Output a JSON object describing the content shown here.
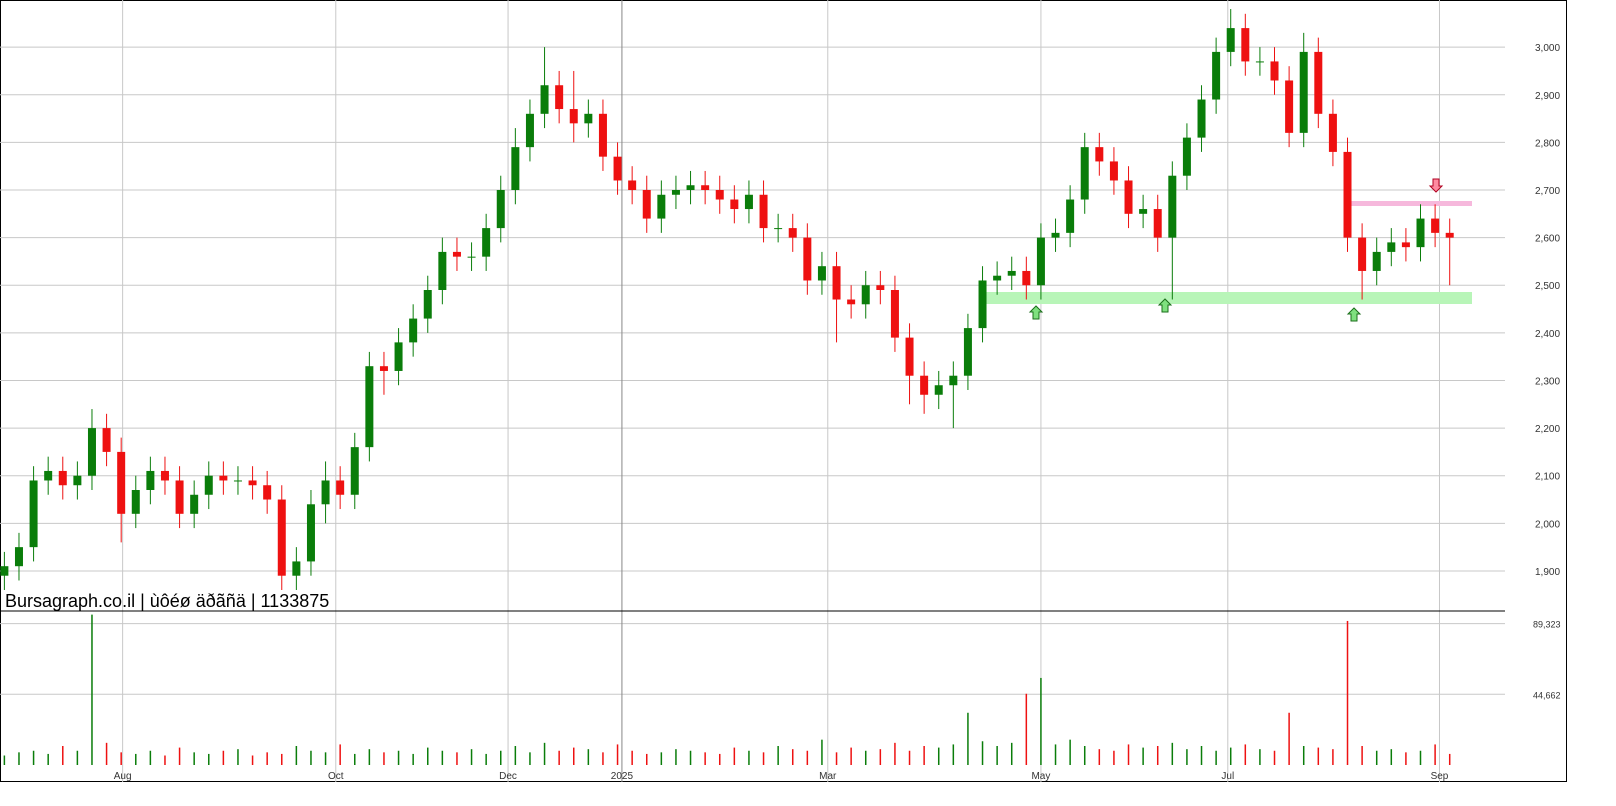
{
  "chart_data": {
    "type": "candlestick",
    "title": "Bursagraph.co.il | ùôéø äðãñä | 1133875",
    "x": [
      0,
      1,
      2,
      3,
      4,
      5,
      6,
      7,
      8,
      9,
      10,
      11,
      12,
      13,
      14,
      15,
      16,
      17,
      18,
      19,
      20,
      21,
      22,
      23,
      24,
      25,
      26,
      27,
      28,
      29,
      30,
      31,
      32,
      33,
      34,
      35,
      36,
      37,
      38,
      39,
      40,
      41,
      42,
      43,
      44,
      45,
      46,
      47,
      48,
      49,
      50,
      51,
      52,
      53,
      54,
      55,
      56,
      57,
      58,
      59,
      60,
      61,
      62,
      63,
      64,
      65,
      66,
      67,
      68,
      69,
      70,
      71,
      72,
      73,
      74,
      75,
      76,
      77,
      78,
      79,
      80,
      81,
      82,
      83,
      84,
      85,
      86,
      87,
      88,
      89,
      90,
      91,
      92,
      93,
      94,
      95,
      96,
      97,
      98,
      99
    ],
    "open": [
      1890,
      1910,
      1950,
      2090,
      2110,
      2080,
      2100,
      2200,
      2150,
      2020,
      2070,
      2110,
      2090,
      2020,
      2060,
      2100,
      2090,
      2090,
      2080,
      2050,
      1890,
      1920,
      2040,
      2090,
      2060,
      2160,
      2330,
      2320,
      2380,
      2430,
      2490,
      2570,
      2560,
      2560,
      2620,
      2700,
      2790,
      2860,
      2920,
      2870,
      2840,
      2860,
      2770,
      2720,
      2700,
      2640,
      2690,
      2700,
      2710,
      2700,
      2680,
      2660,
      2690,
      2620,
      2620,
      2600,
      2510,
      2540,
      2470,
      2460,
      2500,
      2490,
      2390,
      2310,
      2270,
      2290,
      2310,
      2410,
      2510,
      2520,
      2530,
      2500,
      2600,
      2610,
      2680,
      2790,
      2760,
      2720,
      2650,
      2660,
      2600,
      2730,
      2810,
      2890,
      2990,
      3040,
      2970,
      2970,
      2930,
      2820,
      2990,
      2860,
      2780,
      2600,
      2530,
      2570,
      2590,
      2580,
      2640,
      2610
    ],
    "high": [
      1940,
      1980,
      2120,
      2140,
      2140,
      2130,
      2240,
      2230,
      2180,
      2100,
      2140,
      2140,
      2120,
      2090,
      2130,
      2130,
      2120,
      2120,
      2110,
      2080,
      1950,
      2070,
      2130,
      2120,
      2190,
      2360,
      2360,
      2410,
      2460,
      2520,
      2600,
      2600,
      2590,
      2650,
      2730,
      2830,
      2890,
      3000,
      2950,
      2950,
      2890,
      2890,
      2800,
      2750,
      2730,
      2720,
      2730,
      2740,
      2740,
      2730,
      2710,
      2720,
      2720,
      2650,
      2650,
      2630,
      2570,
      2570,
      2500,
      2530,
      2530,
      2520,
      2420,
      2340,
      2320,
      2340,
      2440,
      2540,
      2550,
      2560,
      2560,
      2630,
      2640,
      2710,
      2820,
      2820,
      2790,
      2750,
      2690,
      2690,
      2760,
      2840,
      2920,
      3020,
      3080,
      3070,
      3000,
      3000,
      2960,
      3030,
      3020,
      2890,
      2810,
      2630,
      2600,
      2620,
      2620,
      2670,
      2670,
      2640
    ],
    "low": [
      1860,
      1880,
      1920,
      2060,
      2050,
      2050,
      2070,
      2120,
      1960,
      1990,
      2040,
      2060,
      1990,
      1990,
      2030,
      2060,
      2060,
      2050,
      2020,
      1860,
      1860,
      1890,
      2000,
      2030,
      2030,
      2130,
      2270,
      2290,
      2350,
      2400,
      2460,
      2530,
      2530,
      2530,
      2590,
      2670,
      2760,
      2830,
      2840,
      2800,
      2810,
      2740,
      2690,
      2670,
      2610,
      2610,
      2660,
      2670,
      2670,
      2650,
      2630,
      2630,
      2590,
      2590,
      2570,
      2480,
      2480,
      2380,
      2430,
      2430,
      2460,
      2360,
      2250,
      2230,
      2240,
      2200,
      2280,
      2380,
      2480,
      2490,
      2470,
      2470,
      2570,
      2580,
      2650,
      2730,
      2690,
      2620,
      2620,
      2570,
      2470,
      2700,
      2780,
      2860,
      2960,
      2940,
      2940,
      2900,
      2790,
      2790,
      2830,
      2750,
      2570,
      2470,
      2500,
      2540,
      2550,
      2550,
      2580,
      2500
    ],
    "close": [
      1910,
      1950,
      2090,
      2110,
      2080,
      2100,
      2200,
      2150,
      2020,
      2070,
      2110,
      2090,
      2020,
      2060,
      2100,
      2090,
      2090,
      2080,
      2050,
      1890,
      1920,
      2040,
      2090,
      2060,
      2160,
      2330,
      2320,
      2380,
      2430,
      2490,
      2570,
      2560,
      2560,
      2620,
      2700,
      2790,
      2860,
      2920,
      2870,
      2840,
      2860,
      2770,
      2720,
      2700,
      2640,
      2690,
      2700,
      2710,
      2700,
      2680,
      2660,
      2690,
      2620,
      2620,
      2600,
      2510,
      2540,
      2470,
      2460,
      2500,
      2490,
      2390,
      2310,
      2270,
      2290,
      2310,
      2410,
      2510,
      2520,
      2530,
      2500,
      2600,
      2610,
      2680,
      2790,
      2760,
      2720,
      2650,
      2660,
      2600,
      2730,
      2810,
      2890,
      2990,
      3040,
      2970,
      2970,
      2930,
      2820,
      2990,
      2860,
      2780,
      2600,
      2530,
      2570,
      2590,
      2580,
      2640,
      2610,
      2600
    ],
    "volume": [
      6000,
      8000,
      9000,
      7000,
      12000,
      9000,
      95000,
      14000,
      8000,
      7000,
      9000,
      6000,
      11000,
      8000,
      7000,
      9000,
      10000,
      6000,
      8000,
      7000,
      12000,
      9000,
      8000,
      13000,
      7000,
      10000,
      8000,
      9000,
      7000,
      11000,
      9000,
      8000,
      10000,
      7000,
      9000,
      12000,
      8000,
      14000,
      9000,
      11000,
      10000,
      8000,
      13000,
      9000,
      7000,
      8000,
      10000,
      9000,
      8000,
      7000,
      11000,
      9000,
      8000,
      12000,
      10000,
      9000,
      16000,
      8000,
      11000,
      9000,
      10000,
      14000,
      9000,
      12000,
      11000,
      13000,
      33000,
      15000,
      12000,
      14000,
      45000,
      55000,
      13000,
      16000,
      12000,
      10000,
      9000,
      13000,
      11000,
      12000,
      14000,
      10000,
      12000,
      9000,
      11000,
      13000,
      10000,
      9000,
      33000,
      12000,
      11000,
      10000,
      91000,
      12000,
      9000,
      10000,
      8000,
      9000,
      13000,
      7000
    ],
    "up_color": "#0a7d0a",
    "down_color": "#ee1111",
    "xlim": [
      -0.3,
      104.5
    ],
    "xticks": [
      {
        "value": 8.1,
        "label": "Aug"
      },
      {
        "value": 22.7,
        "label": "Oct"
      },
      {
        "value": 34.5,
        "label": "Dec"
      },
      {
        "value": 42.3,
        "label": "2025"
      },
      {
        "value": 56.4,
        "label": "Mar"
      },
      {
        "value": 71,
        "label": "May"
      },
      {
        "value": 83.8,
        "label": "Jul"
      },
      {
        "value": 98.3,
        "label": "Sep"
      }
    ],
    "ylim": [
      1818,
      3099
    ],
    "yticks": [
      {
        "value": 1900,
        "label": "1,900"
      },
      {
        "value": 2000,
        "label": "2,000"
      },
      {
        "value": 2100,
        "label": "2,100"
      },
      {
        "value": 2200,
        "label": "2,200"
      },
      {
        "value": 2300,
        "label": "2,300"
      },
      {
        "value": 2400,
        "label": "2,400"
      },
      {
        "value": 2500,
        "label": "2,500"
      },
      {
        "value": 2600,
        "label": "2,600"
      },
      {
        "value": 2700,
        "label": "2,700"
      },
      {
        "value": 2800,
        "label": "2,800"
      },
      {
        "value": 2900,
        "label": "2,900"
      },
      {
        "value": 3000,
        "label": "3,000"
      }
    ],
    "y2lim": [
      0,
      96655
    ],
    "y2ticks": [
      {
        "value": 44662,
        "label": "44,662"
      },
      {
        "value": 89323,
        "label": "89,323"
      }
    ],
    "grid": true
  }
}
